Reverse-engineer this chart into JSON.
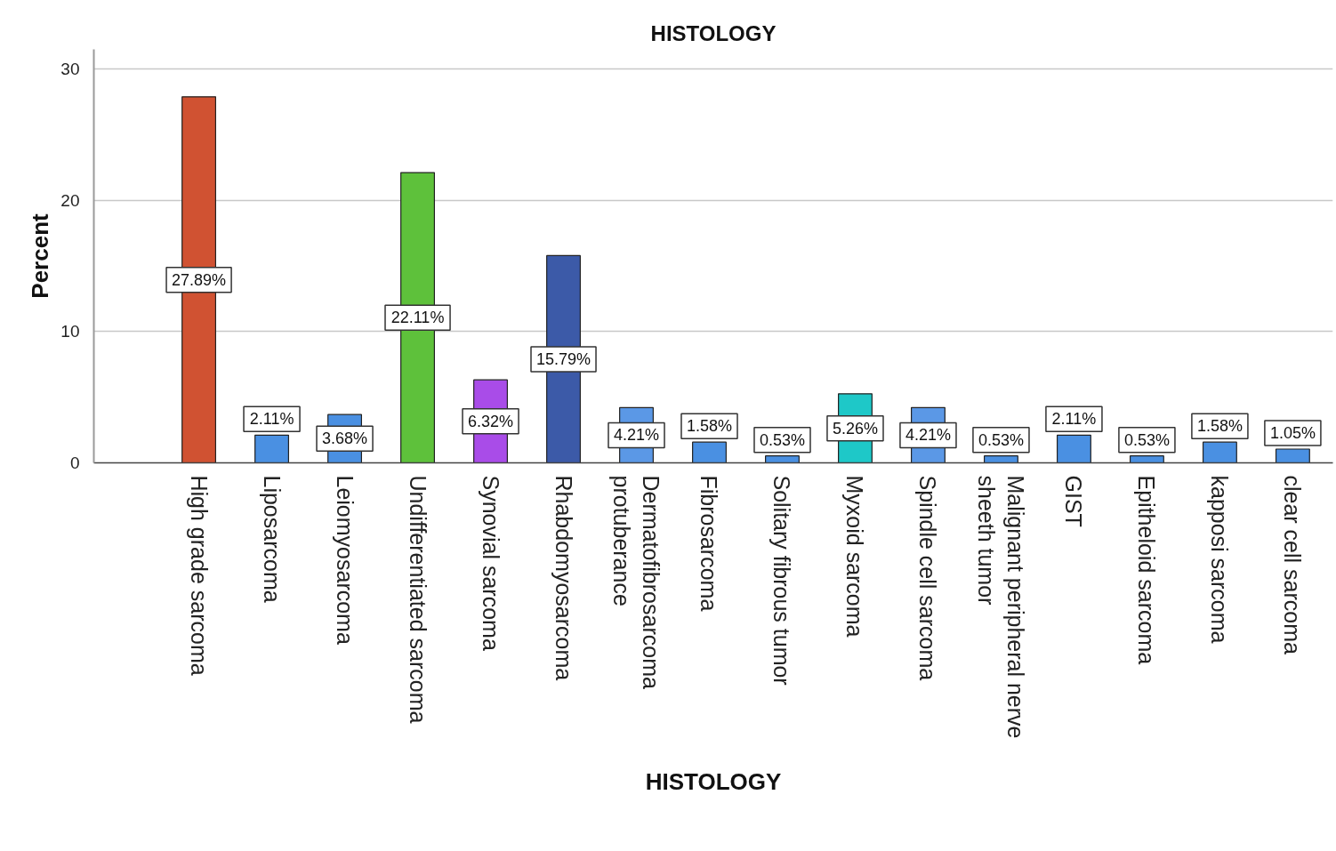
{
  "chart_data": {
    "type": "bar",
    "title": "HISTOLOGY",
    "xlabel": "HISTOLOGY",
    "ylabel": "Percent",
    "categories": [
      "High grade sarcoma",
      "Liposarcoma",
      "Leiomyosarcoma",
      "Undifferentiated sarcoma",
      "Synovial sarcoma",
      "Rhabdomyosarcoma",
      "Dermatofibrosarcoma protuberance",
      "Fibrosarcoma",
      "Solitary fibrous tumor",
      "Myxoid sarcoma",
      "Spindle cell sarcoma",
      "Malignant peripheral nerve sheeth tumor",
      "GIST",
      "Epitheloid sarcoma",
      "kapposi sarcoma",
      "clear cell sarcoma"
    ],
    "values": [
      27.89,
      2.11,
      3.68,
      22.11,
      6.32,
      15.79,
      4.21,
      1.58,
      0.53,
      5.26,
      4.21,
      0.53,
      2.11,
      0.53,
      1.58,
      1.05
    ],
    "colors": [
      "#d05232",
      "#4a90e2",
      "#4a90e2",
      "#5ec13b",
      "#a94ce8",
      "#3c5aa8",
      "#5b98e6",
      "#4a90e2",
      "#4a90e2",
      "#1ec8c8",
      "#5b98e6",
      "#4a90e2",
      "#4a90e2",
      "#4a90e2",
      "#4a90e2",
      "#4a90e2"
    ],
    "value_labels": [
      "27.89%",
      "2.11%",
      "3.68%",
      "22.11%",
      "6.32%",
      "15.79%",
      "4.21%",
      "1.58%",
      "0.53%",
      "5.26%",
      "4.21%",
      "0.53%",
      "2.11%",
      "0.53%",
      "1.58%",
      "1.05%"
    ],
    "ylim": [
      0,
      31.5
    ],
    "yticks": [
      0,
      10,
      20,
      30
    ],
    "grid": "y"
  }
}
